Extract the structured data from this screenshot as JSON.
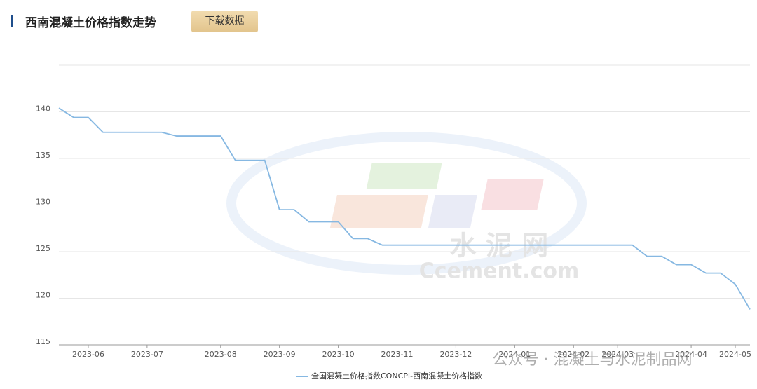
{
  "toolbar": {
    "title": "西南混凝土价格指数走势",
    "button": "下载数据"
  },
  "watermarks": [
    "水 泥 网",
    "Ccement.com",
    "公众号 · 混凝土与水泥制品网"
  ],
  "chart_data": {
    "type": "line",
    "categories": [
      null,
      null,
      "2023-06",
      null,
      null,
      null,
      "2023-07",
      null,
      null,
      null,
      null,
      "2023-08",
      null,
      null,
      null,
      "2023-09",
      null,
      null,
      null,
      "2023-10",
      null,
      null,
      null,
      "2023-11",
      null,
      null,
      null,
      "2023-12",
      null,
      null,
      null,
      "2024-01",
      null,
      null,
      null,
      "2024-02",
      null,
      null,
      "2024-03",
      null,
      null,
      null,
      null,
      "2024-04",
      null,
      null,
      "2024-05",
      null
    ],
    "series": [
      {
        "name": "全国混凝土价格指数CONCPI-西南混凝土价格指数",
        "color": "#86b8e2",
        "values": [
          140.4,
          139.4,
          139.4,
          137.8,
          137.8,
          137.8,
          137.8,
          137.8,
          137.4,
          137.4,
          137.4,
          137.4,
          134.8,
          134.8,
          134.8,
          129.5,
          129.5,
          128.2,
          128.2,
          128.2,
          126.4,
          126.4,
          125.7,
          125.7,
          125.7,
          125.7,
          125.7,
          125.7,
          125.7,
          125.7,
          125.7,
          125.7,
          125.7,
          125.7,
          125.7,
          125.7,
          125.7,
          125.7,
          125.7,
          125.7,
          124.5,
          124.5,
          123.6,
          123.6,
          122.7,
          122.7,
          121.5,
          118.8
        ]
      }
    ],
    "ylim": [
      115,
      145
    ],
    "yticks": [
      115,
      120,
      125,
      130,
      135,
      140
    ],
    "grid": true
  }
}
